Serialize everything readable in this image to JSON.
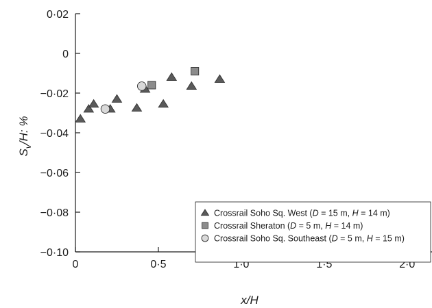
{
  "chart_data": {
    "type": "scatter",
    "title": "",
    "xlabel": "x/H",
    "ylabel_parts": {
      "s": "S",
      "sub": "v",
      "rest": "/H: %"
    },
    "xlim": [
      0,
      2.15
    ],
    "ylim": [
      -0.1,
      0.02
    ],
    "xticks": [
      0,
      0.5,
      1.0,
      1.5,
      2.0
    ],
    "xtick_labels": [
      "0",
      "0·5",
      "1·0",
      "1·5",
      "2·0"
    ],
    "yticks": [
      0.02,
      0,
      -0.02,
      -0.04,
      -0.06,
      -0.08,
      -0.1
    ],
    "ytick_labels": [
      "0·02",
      "0",
      "−0·02",
      "−0·04",
      "−0·06",
      "−0·08",
      "−0·10"
    ],
    "grid": false,
    "legend_position": "bottom-right",
    "series": [
      {
        "name": "Crossrail Soho Sq. West",
        "legend_parts": [
          {
            "t": "Crossrail Soho Sq. West ("
          },
          {
            "t": "D",
            "i": true
          },
          {
            "t": " = 15 m, "
          },
          {
            "t": "H",
            "i": true
          },
          {
            "t": " = 14 m)"
          }
        ],
        "marker": "triangle",
        "color": "#5a5a5a",
        "points": [
          [
            0.03,
            -0.033
          ],
          [
            0.08,
            -0.028
          ],
          [
            0.11,
            -0.0255
          ],
          [
            0.21,
            -0.028
          ],
          [
            0.25,
            -0.023
          ],
          [
            0.37,
            -0.0275
          ],
          [
            0.42,
            -0.018
          ],
          [
            0.53,
            -0.0255
          ],
          [
            0.58,
            -0.012
          ],
          [
            0.7,
            -0.0165
          ],
          [
            0.87,
            -0.013
          ]
        ]
      },
      {
        "name": "Crossrail Sheraton",
        "legend_parts": [
          {
            "t": "Crossrail Sheraton ("
          },
          {
            "t": "D",
            "i": true
          },
          {
            "t": " = 5 m, "
          },
          {
            "t": "H",
            "i": true
          },
          {
            "t": " = 14 m)"
          }
        ],
        "marker": "square",
        "color": "#8c8c8c",
        "points": [
          [
            0.46,
            -0.016
          ],
          [
            0.72,
            -0.009
          ]
        ]
      },
      {
        "name": "Crossrail Soho Sq. Southeast",
        "legend_parts": [
          {
            "t": "Crossrail Soho Sq. Southeast ("
          },
          {
            "t": "D",
            "i": true
          },
          {
            "t": " = 5 m, "
          },
          {
            "t": "H",
            "i": true
          },
          {
            "t": " = 15 m)"
          }
        ],
        "marker": "circle",
        "color": "#d9d9d9",
        "points": [
          [
            0.18,
            -0.028
          ],
          [
            0.4,
            -0.0165
          ]
        ]
      }
    ]
  }
}
